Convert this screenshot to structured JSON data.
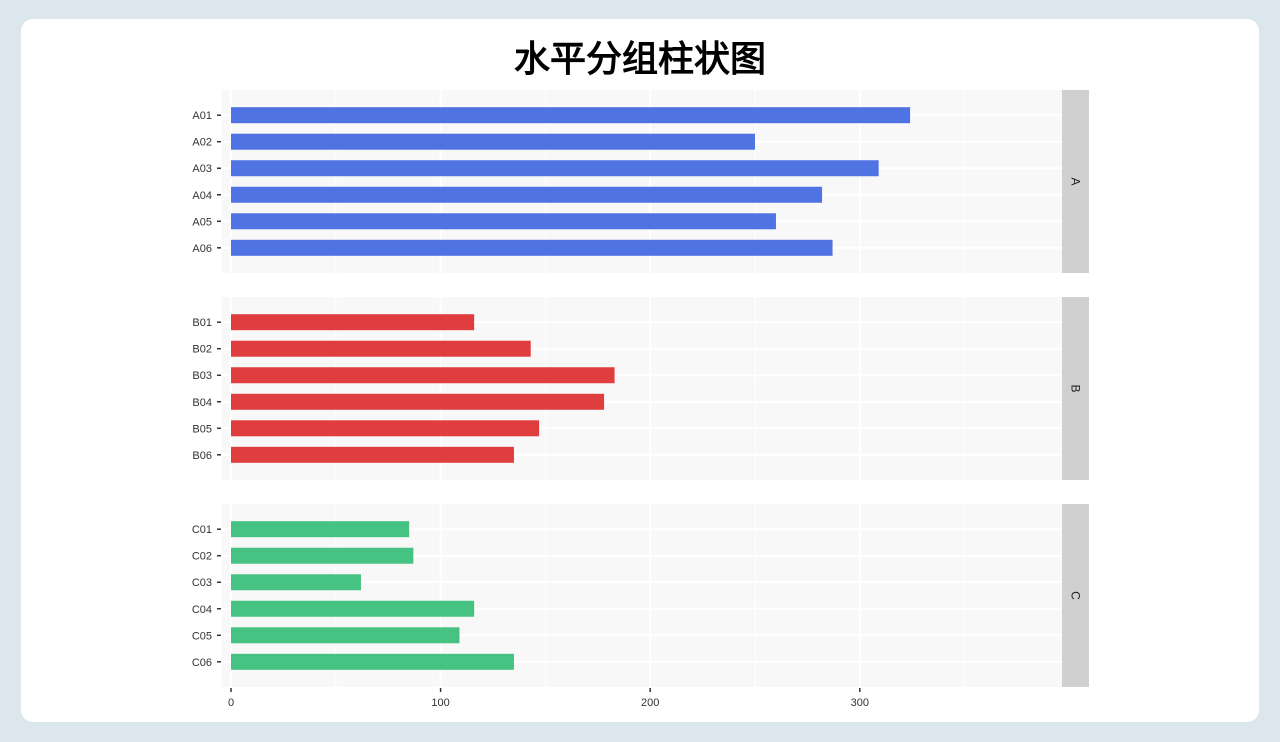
{
  "chart_data": {
    "type": "bar",
    "orientation": "horizontal",
    "title": "水平分组柱状图",
    "xlabel": "",
    "ylabel": "",
    "xlim": [
      0,
      395
    ],
    "xticks": [
      0,
      100,
      200,
      300
    ],
    "grid": true,
    "facets": [
      {
        "label": "A",
        "color": "#4f73e3",
        "categories": [
          "A01",
          "A02",
          "A03",
          "A04",
          "A05",
          "A06"
        ],
        "values": [
          324,
          250,
          309,
          282,
          260,
          287
        ]
      },
      {
        "label": "B",
        "color": "#e03e3e",
        "categories": [
          "B01",
          "B02",
          "B03",
          "B04",
          "B05",
          "B06"
        ],
        "values": [
          116,
          143,
          183,
          178,
          147,
          135
        ]
      },
      {
        "label": "C",
        "color": "#46c282",
        "categories": [
          "C01",
          "C02",
          "C03",
          "C04",
          "C05",
          "C06"
        ],
        "values": [
          85,
          87,
          62,
          116,
          109,
          135
        ]
      }
    ]
  }
}
